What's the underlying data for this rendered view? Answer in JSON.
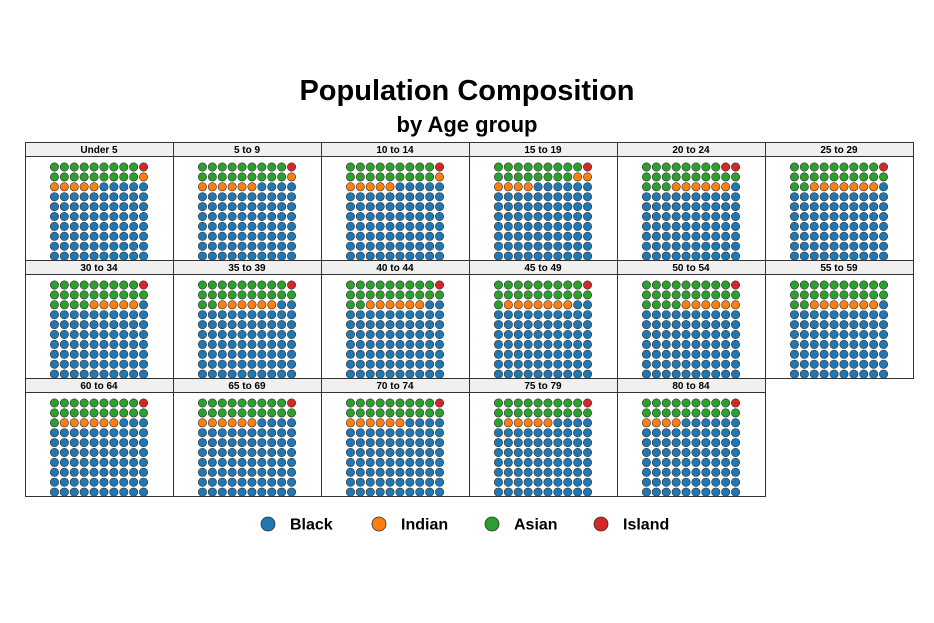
{
  "chart_data": {
    "type": "waffle",
    "title": "Population Composition",
    "subtitle": "by Age group",
    "grid": {
      "rows": 10,
      "cols": 10
    },
    "colors": {
      "Black": "#1f77b4",
      "Indian": "#ff7f0e",
      "Asian": "#2ca02c",
      "Island": "#d62728"
    },
    "legend": {
      "position": "bottom",
      "entries": [
        "Black",
        "Indian",
        "Asian",
        "Island"
      ]
    },
    "panels": [
      {
        "label": "Under 5",
        "Black": 75,
        "Indian": 6,
        "Asian": 18,
        "Island": 1
      },
      {
        "label": "5 to 9",
        "Black": 74,
        "Indian": 7,
        "Asian": 18,
        "Island": 1
      },
      {
        "label": "10 to 14",
        "Black": 75,
        "Indian": 6,
        "Asian": 18,
        "Island": 1
      },
      {
        "label": "15 to 19",
        "Black": 76,
        "Indian": 6,
        "Asian": 17,
        "Island": 1
      },
      {
        "label": "20 to 24",
        "Black": 71,
        "Indian": 6,
        "Asian": 21,
        "Island": 2
      },
      {
        "label": "25 to 29",
        "Black": 71,
        "Indian": 7,
        "Asian": 21,
        "Island": 1
      },
      {
        "label": "30 to 34",
        "Black": 71,
        "Indian": 5,
        "Asian": 23,
        "Island": 1
      },
      {
        "label": "35 to 39",
        "Black": 72,
        "Indian": 6,
        "Asian": 21,
        "Island": 1
      },
      {
        "label": "40 to 44",
        "Black": 72,
        "Indian": 6,
        "Asian": 21,
        "Island": 1
      },
      {
        "label": "45 to 49",
        "Black": 72,
        "Indian": 7,
        "Asian": 20,
        "Island": 1
      },
      {
        "label": "50 to 54",
        "Black": 70,
        "Indian": 6,
        "Asian": 23,
        "Island": 1
      },
      {
        "label": "55 to 59",
        "Black": 71,
        "Indian": 7,
        "Asian": 22,
        "Island": 0
      },
      {
        "label": "60 to 64",
        "Black": 73,
        "Indian": 6,
        "Asian": 20,
        "Island": 1
      },
      {
        "label": "65 to 69",
        "Black": 74,
        "Indian": 6,
        "Asian": 19,
        "Island": 1
      },
      {
        "label": "70 to 74",
        "Black": 74,
        "Indian": 6,
        "Asian": 19,
        "Island": 1
      },
      {
        "label": "75 to 79",
        "Black": 74,
        "Indian": 5,
        "Asian": 20,
        "Island": 1
      },
      {
        "label": "80 to 84",
        "Black": 76,
        "Indian": 4,
        "Asian": 19,
        "Island": 1
      }
    ]
  }
}
